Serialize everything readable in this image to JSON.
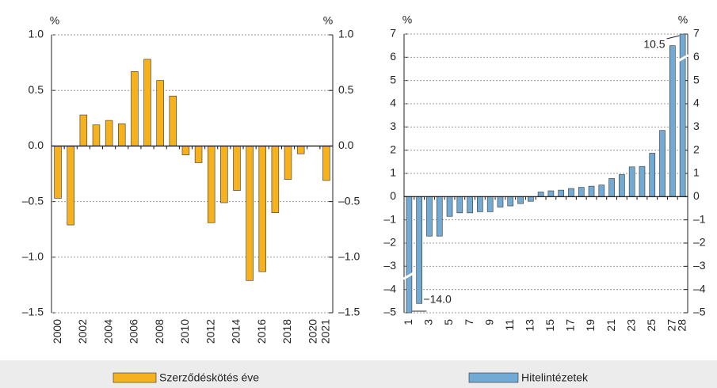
{
  "chart_data": [
    {
      "type": "bar",
      "ylabel": "%",
      "y2label": "%",
      "categories": [
        "2000",
        null,
        "2002",
        null,
        "2004",
        null,
        "2006",
        null,
        "2008",
        null,
        "2010",
        null,
        "2012",
        null,
        "2014",
        null,
        "2016",
        null,
        "2018",
        null,
        "2020",
        "2021"
      ],
      "series": [
        {
          "name": "Szerződéskötés éve",
          "color": "#f5b21e",
          "values": [
            -0.47,
            -0.71,
            0.28,
            0.19,
            0.23,
            0.2,
            0.67,
            0.78,
            0.59,
            0.45,
            -0.08,
            -0.15,
            -0.69,
            -0.51,
            -0.4,
            -1.21,
            -1.13,
            -0.6,
            -0.3,
            -0.07,
            0,
            -0.31
          ]
        }
      ],
      "ylim": [
        -1.5,
        1.0
      ],
      "yticks": [
        {
          "value": -1.5,
          "label": "–1.5"
        },
        {
          "value": -1.0,
          "label": "–1.0"
        },
        {
          "value": -0.5,
          "label": "–0.5"
        },
        {
          "value": 0,
          "label": "0.0"
        },
        0.5,
        {
          "value": 1.0,
          "label": "1.0"
        }
      ],
      "y2lim": [
        -1.5,
        1.0
      ],
      "y2ticks": [
        {
          "value": -1.5,
          "label": "–1.5"
        },
        {
          "value": -1.0,
          "label": "–1.0"
        },
        {
          "value": -0.5,
          "label": "–0.5"
        },
        {
          "value": 0,
          "label": "0.0"
        },
        0.5,
        {
          "value": 1.0,
          "label": "1.0"
        }
      ],
      "grid": true
    },
    {
      "type": "bar",
      "ylabel": "%",
      "y2label": "%",
      "categories": [
        "1",
        null,
        "3",
        null,
        "5",
        null,
        "7",
        null,
        "9",
        null,
        "11",
        null,
        "13",
        null,
        "15",
        null,
        "17",
        null,
        "19",
        null,
        "21",
        null,
        "23",
        null,
        "25",
        null,
        "27",
        "28"
      ],
      "series": [
        {
          "name": "Hitelintézetek",
          "color": "#72aad3",
          "values": [
            -14.0,
            -4.6,
            -1.7,
            -1.7,
            -0.85,
            -0.7,
            -0.7,
            -0.65,
            -0.65,
            -0.45,
            -0.4,
            -0.3,
            -0.2,
            0.2,
            0.25,
            0.28,
            0.35,
            0.4,
            0.45,
            0.5,
            0.78,
            0.95,
            1.28,
            1.3,
            1.87,
            2.85,
            6.5,
            10.5
          ],
          "value_labels": [
            "−14.0",
            null,
            null,
            null,
            null,
            null,
            null,
            null,
            null,
            null,
            null,
            null,
            null,
            null,
            null,
            null,
            null,
            null,
            null,
            null,
            null,
            null,
            null,
            null,
            null,
            null,
            null,
            "10.5"
          ]
        }
      ],
      "ylim": [
        -5,
        7
      ],
      "yticks": [
        {
          "value": -5,
          "label": "–5"
        },
        {
          "value": -4,
          "label": "–4"
        },
        {
          "value": -3,
          "label": "–3"
        },
        {
          "value": -2,
          "label": "–2"
        },
        {
          "value": -1,
          "label": "–1"
        },
        0,
        1,
        2,
        3,
        4,
        5,
        6,
        7
      ],
      "y2lim": [
        -5,
        7
      ],
      "y2ticks": [
        {
          "value": -5,
          "label": "–5"
        },
        {
          "value": -4,
          "label": "–4"
        },
        {
          "value": -3,
          "label": "–3"
        },
        {
          "value": -2,
          "label": "–2"
        },
        {
          "value": -1,
          "label": "–1"
        },
        0,
        1,
        2,
        3,
        4,
        5,
        6,
        7
      ],
      "grid": true
    }
  ]
}
